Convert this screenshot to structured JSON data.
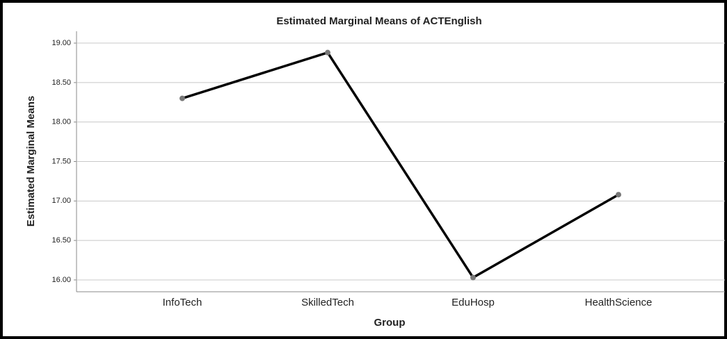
{
  "chart_data": {
    "type": "line",
    "title": "Estimated Marginal Means of ACTEnglish",
    "x_label": "Group",
    "y_label": "Estimated Marginal Means",
    "categories": [
      "InfoTech",
      "SkilledTech",
      "EduHosp",
      "HealthScience"
    ],
    "series": [
      {
        "name": "ACTEnglish",
        "color": "#000000",
        "values": [
          18.3,
          18.88,
          16.03,
          17.08
        ]
      }
    ],
    "ylim": [
      15.85,
      19.15
    ],
    "yticks": [
      {
        "value": 16,
        "label": "16.00"
      },
      {
        "value": 16.5,
        "label": "16.50"
      },
      {
        "value": 17,
        "label": "17.00"
      },
      {
        "value": 17.5,
        "label": "17.50"
      },
      {
        "value": 18,
        "label": "18.00"
      },
      {
        "value": 18.5,
        "label": "18.50"
      },
      {
        "value": 19,
        "label": "19.00"
      }
    ],
    "grid": true
  }
}
